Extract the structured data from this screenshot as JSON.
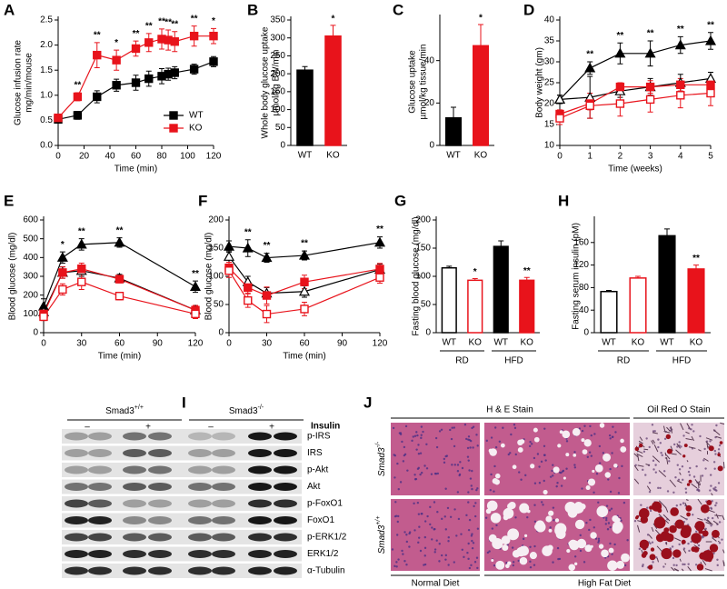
{
  "chart_data": [
    {
      "type": "line",
      "panel_label": "A",
      "xlabel": "Time (min)",
      "ylabel": [
        "Glucose infusion rate",
        "mg/min/mouse"
      ],
      "x": [
        0,
        15,
        30,
        45,
        60,
        70,
        80,
        85,
        90,
        105,
        120
      ],
      "xlim": [
        0,
        120
      ],
      "xticks": [
        0,
        20,
        40,
        60,
        80,
        100,
        120
      ],
      "ylim": [
        0,
        2.5
      ],
      "yticks": [
        {
          "value": 0,
          "label": "0.0"
        },
        0.5,
        {
          "value": 1,
          "label": "1.0"
        },
        1.5,
        {
          "value": 2,
          "label": "2.0"
        },
        2.5
      ],
      "legend": "lower right",
      "series": [
        {
          "name": "WT",
          "color": "#000000",
          "marker": "square",
          "filled": true,
          "values": [
            0.52,
            0.6,
            0.97,
            1.2,
            1.25,
            1.33,
            1.38,
            1.42,
            1.45,
            1.52,
            1.67
          ],
          "errors": [
            0.05,
            0.08,
            0.12,
            0.12,
            0.15,
            0.15,
            0.15,
            0.12,
            0.12,
            0.1,
            0.1
          ]
        },
        {
          "name": "KO",
          "color": "#e8131b",
          "marker": "square",
          "filled": true,
          "values": [
            0.55,
            0.97,
            1.8,
            1.7,
            1.93,
            2.05,
            2.12,
            2.1,
            2.07,
            2.18,
            2.18
          ],
          "errors": [
            0.05,
            0.08,
            0.25,
            0.2,
            0.15,
            0.18,
            0.2,
            0.2,
            0.2,
            0.2,
            0.15
          ]
        }
      ],
      "significance": [
        null,
        "**",
        "**",
        "*",
        "**",
        "**",
        "**",
        "**",
        "**",
        "**",
        "*"
      ]
    },
    {
      "type": "bar",
      "panel_label": "B",
      "ylabel": [
        "Whole body glucose uptake",
        "µmol/kg BW/min"
      ],
      "categories": [
        "WT",
        "KO"
      ],
      "values": [
        210,
        305
      ],
      "errors": [
        10,
        30
      ],
      "colors": [
        "#000000",
        "#e8131b"
      ],
      "filled": [
        true,
        true
      ],
      "ylim": [
        0,
        350
      ],
      "yticks": [
        0,
        50,
        100,
        150,
        200,
        250,
        300,
        350
      ],
      "significance": [
        null,
        "*"
      ]
    },
    {
      "type": "bar",
      "panel_label": "C",
      "ylabel": [
        "Glucose uptake",
        "µmol/kg tissue/min"
      ],
      "categories": [
        "WT",
        "KO"
      ],
      "values": [
        13,
        47
      ],
      "errors": [
        5,
        10
      ],
      "colors": [
        "#000000",
        "#e8131b"
      ],
      "filled": [
        true,
        true
      ],
      "ylim": [
        0,
        60
      ],
      "yticks": [
        0,
        20,
        40
      ],
      "significance": [
        null,
        "*"
      ]
    },
    {
      "type": "line",
      "panel_label": "D",
      "xlabel": "Time (weeks)",
      "ylabel": [
        "Body weight (gm)"
      ],
      "x": [
        0,
        1,
        2,
        3,
        4,
        5
      ],
      "xlim": [
        0,
        5
      ],
      "xticks": [
        0,
        1,
        2,
        3,
        4,
        5
      ],
      "ylim": [
        10,
        40
      ],
      "yticks": [
        10,
        15,
        20,
        25,
        30,
        35,
        40
      ],
      "series": [
        {
          "color": "#000000",
          "marker": "triangle",
          "filled": true,
          "values": [
            21,
            28.5,
            32,
            32,
            34,
            35
          ],
          "errors": [
            1,
            1.5,
            2.5,
            3,
            2,
            2
          ]
        },
        {
          "color": "#000000",
          "marker": "triangle",
          "filled": false,
          "values": [
            21,
            21.5,
            23,
            24,
            25,
            26
          ],
          "errors": [
            1,
            5,
            1.5,
            2,
            2,
            1.5
          ]
        },
        {
          "color": "#e8131b",
          "marker": "square",
          "filled": true,
          "values": [
            17.5,
            20,
            24,
            24,
            24.5,
            24.5
          ],
          "errors": [
            1,
            1.5,
            1,
            1.5,
            1.5,
            1.5
          ]
        },
        {
          "color": "#e8131b",
          "marker": "square",
          "filled": false,
          "values": [
            16.5,
            19.5,
            20,
            21,
            22,
            22.5
          ],
          "errors": [
            1.5,
            3,
            3,
            3,
            3,
            3
          ]
        }
      ],
      "significance": [
        null,
        "**",
        "**",
        "**",
        "**",
        "**"
      ]
    },
    {
      "type": "line",
      "panel_label": "E",
      "xlabel": "Time (min)",
      "ylabel": [
        "Blood glucose (mg/dl)"
      ],
      "x": [
        0,
        15,
        30,
        60,
        120
      ],
      "xlim": [
        0,
        120
      ],
      "xticks": [
        0,
        30,
        60,
        90,
        120
      ],
      "ylim": [
        0,
        600
      ],
      "yticks": [
        0,
        100,
        200,
        300,
        400,
        500,
        600
      ],
      "series": [
        {
          "color": "#000000",
          "marker": "triangle",
          "filled": true,
          "values": [
            140,
            400,
            470,
            480,
            245
          ],
          "errors": [
            40,
            30,
            30,
            25,
            30
          ]
        },
        {
          "color": "#000000",
          "marker": "triangle",
          "filled": false,
          "values": [
            110,
            320,
            330,
            290,
            120
          ],
          "errors": [
            30,
            30,
            30,
            20,
            20
          ]
        },
        {
          "color": "#e8131b",
          "marker": "square",
          "filled": true,
          "values": [
            100,
            320,
            340,
            285,
            120
          ],
          "errors": [
            25,
            30,
            30,
            20,
            25
          ]
        },
        {
          "color": "#e8131b",
          "marker": "square",
          "filled": false,
          "values": [
            85,
            230,
            270,
            195,
            100
          ],
          "errors": [
            20,
            30,
            40,
            20,
            25
          ]
        }
      ],
      "significance": [
        null,
        "*",
        "**",
        "**",
        "**"
      ]
    },
    {
      "type": "line",
      "panel_label": "F",
      "xlabel": "Time (min)",
      "ylabel": [
        "Blood glucose (mg/dl)"
      ],
      "x": [
        0,
        15,
        30,
        60,
        120
      ],
      "xlim": [
        0,
        120
      ],
      "xticks": [
        0,
        30,
        60,
        90,
        120
      ],
      "ylim": [
        0,
        200
      ],
      "yticks": [
        0,
        50,
        100,
        150,
        200
      ],
      "series": [
        {
          "color": "#000000",
          "marker": "triangle",
          "filled": true,
          "values": [
            153,
            150,
            133,
            137,
            160
          ],
          "errors": [
            10,
            15,
            8,
            8,
            10
          ]
        },
        {
          "color": "#000000",
          "marker": "triangle",
          "filled": false,
          "values": [
            135,
            90,
            70,
            73,
            112
          ],
          "errors": [
            10,
            10,
            10,
            10,
            10
          ]
        },
        {
          "color": "#e8131b",
          "marker": "square",
          "filled": true,
          "values": [
            115,
            80,
            66,
            90,
            113
          ],
          "errors": [
            10,
            10,
            15,
            12,
            10
          ]
        },
        {
          "color": "#e8131b",
          "marker": "square",
          "filled": false,
          "values": [
            110,
            57,
            33,
            42,
            98
          ],
          "errors": [
            12,
            12,
            15,
            12,
            10
          ]
        }
      ],
      "significance": [
        null,
        "**",
        "**",
        "**",
        "**"
      ]
    },
    {
      "type": "bar",
      "panel_label": "G",
      "ylabel": [
        "Fasting blood glucose (mg/dl)"
      ],
      "categories": [
        "WT",
        "KO",
        "WT",
        "KO"
      ],
      "groups": [
        "RD",
        "HFD"
      ],
      "values": [
        115,
        93,
        153,
        93
      ],
      "errors": [
        3,
        3,
        10,
        5
      ],
      "colors": [
        "#000000",
        "#e8131b",
        "#000000",
        "#e8131b"
      ],
      "filled": [
        false,
        false,
        true,
        true
      ],
      "ylim": [
        0,
        200
      ],
      "yticks": [
        0,
        50,
        100,
        150,
        200
      ],
      "significance": [
        null,
        "*",
        null,
        "**"
      ]
    },
    {
      "type": "bar",
      "panel_label": "H",
      "ylabel": [
        "Fasting serum insulin (pM)"
      ],
      "categories": [
        "WT",
        "KO",
        "WT",
        "KO"
      ],
      "groups": [
        "RD",
        "HFD"
      ],
      "values": [
        73,
        97,
        172,
        113
      ],
      "errors": [
        2,
        3,
        12,
        7
      ],
      "colors": [
        "#000000",
        "#e8131b",
        "#000000",
        "#e8131b"
      ],
      "filled": [
        false,
        false,
        true,
        true
      ],
      "ylim": [
        0,
        200
      ],
      "yticks": [
        0,
        40,
        80,
        120,
        160
      ],
      "significance": [
        null,
        null,
        null,
        "**"
      ]
    }
  ],
  "blot": {
    "panel_label": "I",
    "genotypes": [
      {
        "base": "Smad3",
        "sup": "+/+"
      },
      {
        "base": "Smad3",
        "sup": "-/-"
      }
    ],
    "treatment": "Insulin",
    "lanes": [
      "–",
      "+",
      "–",
      "+"
    ],
    "rows": [
      "p-IRS",
      "IRS",
      "p-Akt",
      "Akt",
      "p-FoxO1",
      "FoxO1",
      "p-ERK1/2",
      "ERK1/2",
      "α-Tubulin"
    ]
  },
  "histology": {
    "panel_label": "J",
    "stains": [
      "H & E Stain",
      "Oil Red O Stain"
    ],
    "genotypes": [
      {
        "base": "Smad3",
        "sup": "-/-"
      },
      {
        "base": "Smad3",
        "sup": "+/+"
      }
    ],
    "diets": [
      "Normal Diet",
      "High Fat Diet"
    ]
  }
}
